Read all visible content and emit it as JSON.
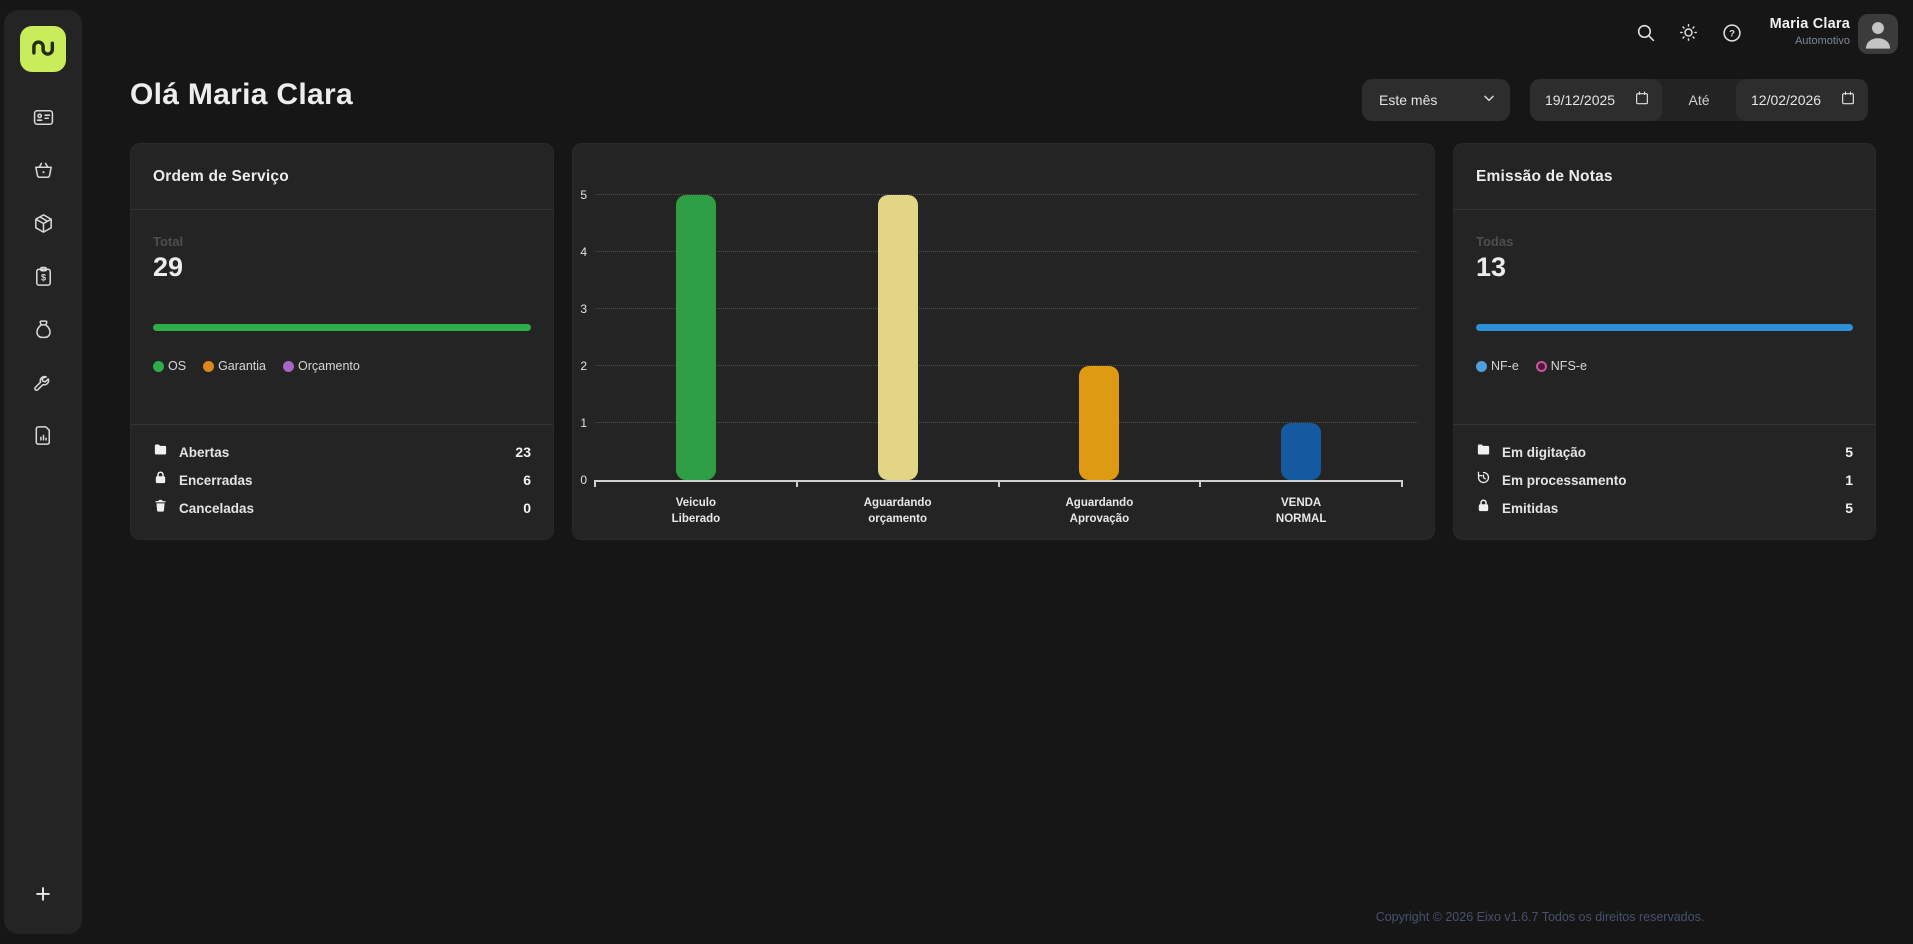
{
  "topbar": {
    "icons": [
      "search",
      "theme-sun",
      "help"
    ],
    "user": {
      "name": "Maria Clara",
      "role": "Automotivo",
      "avatar_icon": "person-silhouette"
    }
  },
  "sidebar": {
    "logo_icon": "eixo-wave-logo",
    "logo_color": "#c9ec5a",
    "items": [
      "id-card",
      "basket",
      "package",
      "invoice-dollar",
      "money-bag",
      "wrench",
      "report-file"
    ],
    "add_button": "+"
  },
  "header": {
    "greeting": "Olá Maria Clara",
    "period_select": {
      "value": "Este mês"
    },
    "date_range": {
      "from": "19/12/2025",
      "separator": "Até",
      "to": "12/02/2026"
    }
  },
  "os_card": {
    "title": "Ordem de Serviço",
    "total_label": "Total",
    "total_value": "29",
    "bar_color": "#2eae4b",
    "legend": [
      {
        "label": "OS",
        "color": "#2eae4b"
      },
      {
        "label": "Garantia",
        "color": "#db861f"
      },
      {
        "label": "Orçamento",
        "color": "#a765c8"
      }
    ],
    "rows": [
      {
        "icon": "folder",
        "label": "Abertas",
        "value": "23"
      },
      {
        "icon": "lock",
        "label": "Encerradas",
        "value": "6"
      },
      {
        "icon": "trash",
        "label": "Canceladas",
        "value": "0"
      }
    ]
  },
  "notes_card": {
    "title": "Emissão de Notas",
    "total_label": "Todas",
    "total_value": "13",
    "bar_color": "#2d8fd5",
    "legend": [
      {
        "label": "NF-e",
        "color": "#4d9fdd",
        "hollow": false
      },
      {
        "label": "NFS-e",
        "color": "#c9579b",
        "hollow": true
      }
    ],
    "rows": [
      {
        "icon": "folder",
        "label": "Em digitação",
        "value": "5"
      },
      {
        "icon": "history",
        "label": "Em processamento",
        "value": "1"
      },
      {
        "icon": "lock",
        "label": "Emitidas",
        "value": "5"
      }
    ]
  },
  "chart_data": {
    "type": "bar",
    "categories": [
      "Veiculo\nLiberado",
      "Aguardando\norçamento",
      "Aguardando\nAprovação",
      "VENDA\nNORMAL"
    ],
    "values": [
      5,
      5,
      2,
      1
    ],
    "colors": [
      "#2e9e44",
      "#e3d586",
      "#dd9a12",
      "#155aa0"
    ],
    "title": "",
    "xlabel": "",
    "ylabel": "",
    "ylim": [
      0,
      5
    ],
    "yticks": [
      0,
      1,
      2,
      3,
      4,
      5
    ],
    "grid": "horizontal-dotted",
    "legend_position": "none"
  },
  "footer": {
    "copyright": "Copyright © 2026 Eixo v1.6.7 Todos os direitos reservados."
  }
}
